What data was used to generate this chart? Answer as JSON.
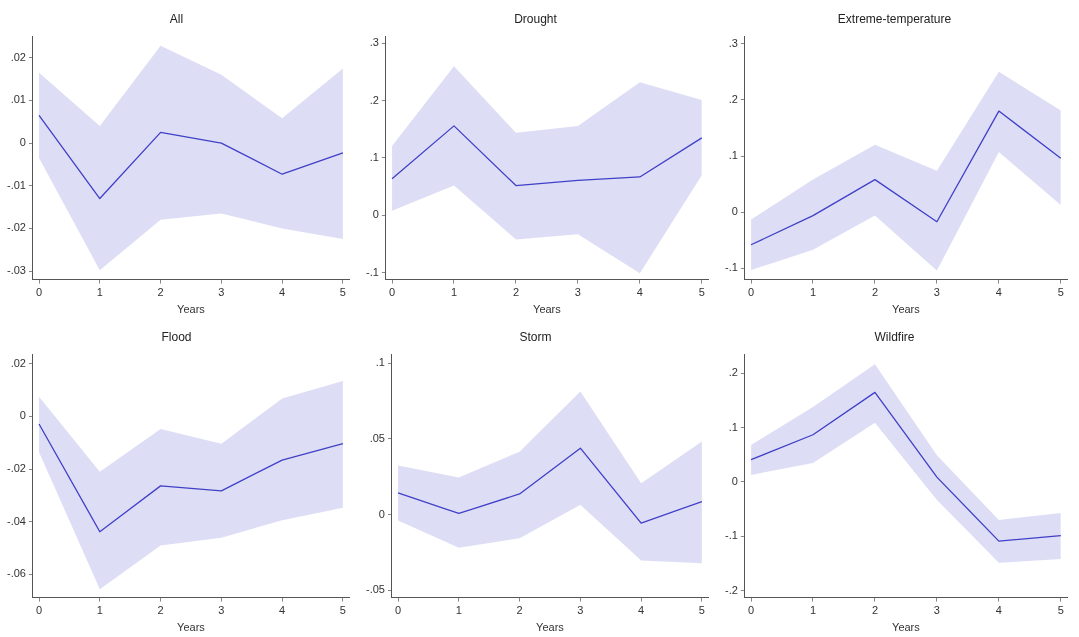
{
  "chart_data": [
    {
      "type": "line",
      "title": "All",
      "xlabel": "Years",
      "x": [
        0,
        1,
        2,
        3,
        4,
        5
      ],
      "xlim": [
        -0.1,
        5.1
      ],
      "xticks": [
        0,
        1,
        2,
        3,
        4,
        5
      ],
      "ylim": [
        -0.032,
        0.025
      ],
      "yticks": [
        {
          "value": -0.03,
          "label": "-.03"
        },
        {
          "value": -0.02,
          "label": "-.02"
        },
        {
          "value": -0.01,
          "label": "-.01"
        },
        {
          "value": 0,
          "label": "0"
        },
        {
          "value": 0.01,
          "label": ".01"
        },
        {
          "value": 0.02,
          "label": ".02"
        }
      ],
      "marker": "none",
      "series": [
        {
          "color": "#4040c8",
          "values": [
            0.0065,
            -0.013,
            0.0025,
            0,
            -0.0073,
            -0.0023
          ],
          "lower": [
            -0.0035,
            -0.0298,
            -0.018,
            -0.0165,
            -0.02,
            -0.0225
          ],
          "upper": [
            0.0165,
            0.004,
            0.0228,
            0.016,
            0.0058,
            0.0175
          ]
        }
      ]
    },
    {
      "type": "line",
      "title": "Drought",
      "xlabel": "Years",
      "x": [
        0,
        1,
        2,
        3,
        4,
        5
      ],
      "xlim": [
        -0.1,
        5.1
      ],
      "xticks": [
        0,
        1,
        2,
        3,
        4,
        5
      ],
      "ylim": [
        -0.112,
        0.312
      ],
      "yticks": [
        {
          "value": -0.1,
          "label": "-.1"
        },
        {
          "value": 0,
          "label": "0"
        },
        {
          "value": 0.1,
          "label": ".1"
        },
        {
          "value": 0.2,
          "label": ".2"
        },
        {
          "value": 0.3,
          "label": ".3"
        }
      ],
      "marker": "none",
      "series": [
        {
          "color": "#4040c8",
          "values": [
            0.064,
            0.156,
            0.052,
            0.061,
            0.067,
            0.135
          ],
          "lower": [
            0.008,
            0.052,
            -0.042,
            -0.033,
            -0.101,
            0.07
          ],
          "upper": [
            0.121,
            0.26,
            0.144,
            0.156,
            0.232,
            0.201
          ]
        }
      ]
    },
    {
      "type": "line",
      "title": "Extreme-temperature",
      "xlabel": "Years",
      "x": [
        0,
        1,
        2,
        3,
        4,
        5
      ],
      "xlim": [
        -0.1,
        5.1
      ],
      "xticks": [
        0,
        1,
        2,
        3,
        4,
        5
      ],
      "ylim": [
        -0.12,
        0.313
      ],
      "yticks": [
        {
          "value": -0.1,
          "label": "-.1"
        },
        {
          "value": 0,
          "label": "0"
        },
        {
          "value": 0.1,
          "label": ".1"
        },
        {
          "value": 0.2,
          "label": ".2"
        },
        {
          "value": 0.3,
          "label": ".3"
        }
      ],
      "marker": "none",
      "series": [
        {
          "color": "#4040c8",
          "values": [
            -0.058,
            -0.006,
            0.058,
            -0.017,
            0.18,
            0.096
          ],
          "lower": [
            -0.103,
            -0.067,
            -0.006,
            -0.104,
            0.107,
            0.013
          ],
          "upper": [
            -0.013,
            0.058,
            0.12,
            0.074,
            0.25,
            0.181
          ]
        }
      ]
    },
    {
      "type": "line",
      "title": "Flood",
      "xlabel": "Years",
      "x": [
        0,
        1,
        2,
        3,
        4,
        5
      ],
      "xlim": [
        -0.1,
        5.1
      ],
      "xticks": [
        0,
        1,
        2,
        3,
        4,
        5
      ],
      "ylim": [
        -0.0688,
        0.0235
      ],
      "yticks": [
        {
          "value": -0.06,
          "label": "-.06"
        },
        {
          "value": -0.04,
          "label": "-.04"
        },
        {
          "value": -0.02,
          "label": "-.02"
        },
        {
          "value": 0,
          "label": "0"
        },
        {
          "value": 0.02,
          "label": ".02"
        }
      ],
      "marker": "none",
      "series": [
        {
          "color": "#4040c8",
          "values": [
            -0.0029,
            -0.0438,
            -0.0264,
            -0.0283,
            -0.0166,
            -0.0104
          ],
          "lower": [
            -0.0136,
            -0.0656,
            -0.049,
            -0.0461,
            -0.0394,
            -0.0347
          ],
          "upper": [
            0.0074,
            -0.021,
            -0.0048,
            -0.0104,
            0.0068,
            0.0134
          ]
        }
      ]
    },
    {
      "type": "line",
      "title": "Storm",
      "xlabel": "Years",
      "x": [
        0,
        1,
        2,
        3,
        4,
        5
      ],
      "xlim": [
        -0.1,
        5.1
      ],
      "xticks": [
        0,
        1,
        2,
        3,
        4,
        5
      ],
      "ylim": [
        -0.055,
        0.106
      ],
      "yticks": [
        {
          "value": -0.05,
          "label": "-.05"
        },
        {
          "value": 0,
          "label": "0"
        },
        {
          "value": 0.05,
          "label": ".05"
        },
        {
          "value": 0.1,
          "label": ".1"
        }
      ],
      "marker": "none",
      "series": [
        {
          "color": "#4040c8",
          "values": [
            0.0143,
            0.0007,
            0.0136,
            0.0439,
            -0.0057,
            0.0086
          ],
          "lower": [
            -0.0039,
            -0.022,
            -0.0157,
            0.0064,
            -0.0305,
            -0.0323
          ],
          "upper": [
            0.0325,
            0.0245,
            0.0416,
            0.0814,
            0.0207,
            0.0484
          ]
        }
      ]
    },
    {
      "type": "line",
      "title": "Wildfire",
      "xlabel": "Years",
      "x": [
        0,
        1,
        2,
        3,
        4,
        5
      ],
      "xlim": [
        -0.1,
        5.1
      ],
      "xticks": [
        0,
        1,
        2,
        3,
        4,
        5
      ],
      "ylim": [
        -0.213,
        0.235
      ],
      "yticks": [
        {
          "value": -0.2,
          "label": "-.2"
        },
        {
          "value": -0.1,
          "label": "-.1"
        },
        {
          "value": 0,
          "label": "0"
        },
        {
          "value": 0.1,
          "label": ".1"
        },
        {
          "value": 0.2,
          "label": ".2"
        }
      ],
      "marker": "none",
      "series": [
        {
          "color": "#4040c8",
          "values": [
            0.041,
            0.087,
            0.165,
            0.009,
            -0.109,
            -0.099
          ],
          "lower": [
            0.013,
            0.035,
            0.109,
            -0.033,
            -0.149,
            -0.142
          ],
          "upper": [
            0.068,
            0.138,
            0.217,
            0.049,
            -0.07,
            -0.057
          ]
        }
      ]
    }
  ]
}
